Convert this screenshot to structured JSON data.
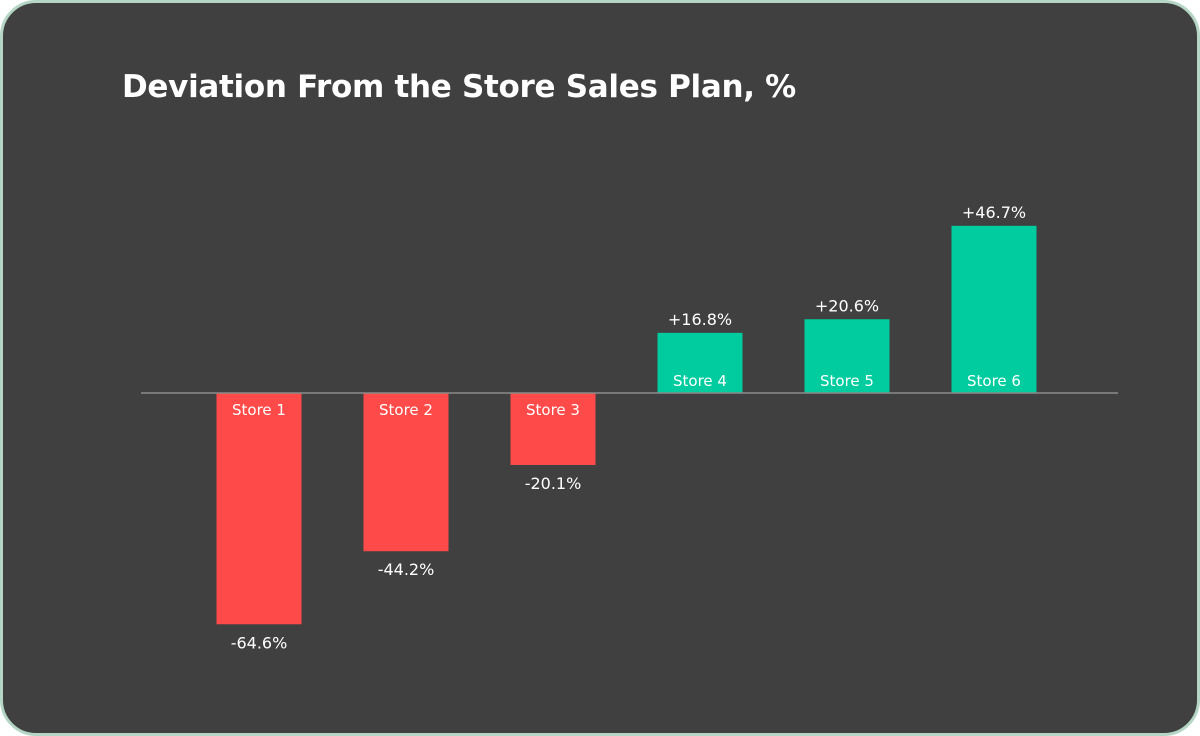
{
  "chart_data": {
    "type": "bar",
    "title": "Deviation From the Store Sales Plan, %",
    "categories": [
      "Store 1",
      "Store 2",
      "Store 3",
      "Store 4",
      "Store 5",
      "Store 6"
    ],
    "values": [
      -64.6,
      -44.2,
      -20.1,
      16.8,
      20.6,
      46.7
    ],
    "data_labels": [
      "-64.6%",
      "-44.2%",
      "-20.1%",
      "+16.8%",
      "+20.6%",
      "+46.7%"
    ],
    "xlabel": "",
    "ylabel": "",
    "grid": false,
    "legend": "none",
    "colors": {
      "negative": "#ff4a4a",
      "positive": "#00cc9f",
      "background": "#404040",
      "border": "#b5d6c5",
      "baseline": "#8a8a8a"
    }
  }
}
